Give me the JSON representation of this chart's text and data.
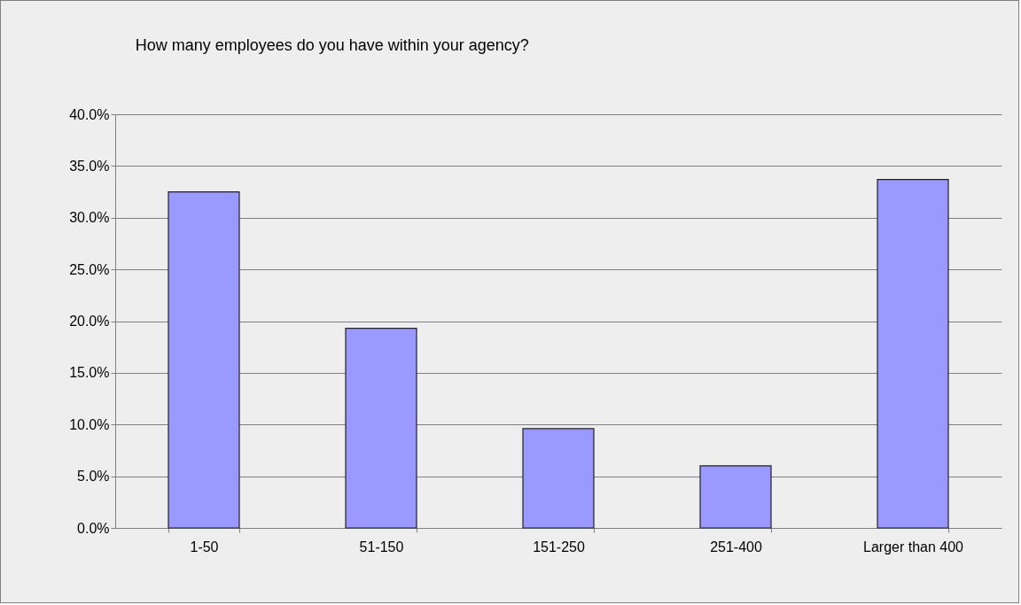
{
  "chart_data": {
    "type": "bar",
    "title": "How many employees do you have within your agency?",
    "categories": [
      "1-50",
      "51-150",
      "151-250",
      "251-400",
      "Larger than 400"
    ],
    "values": [
      32.5,
      19.3,
      9.6,
      6.0,
      33.7
    ],
    "color": "#9999ff",
    "ylim": [
      0,
      40
    ],
    "yticks": [
      {
        "value": 0,
        "label": "0.0%"
      },
      {
        "value": 5,
        "label": "5.0%"
      },
      {
        "value": 10,
        "label": "10.0%"
      },
      {
        "value": 15,
        "label": "15.0%"
      },
      {
        "value": 20,
        "label": "20.0%"
      },
      {
        "value": 25,
        "label": "25.0%"
      },
      {
        "value": 30,
        "label": "30.0%"
      },
      {
        "value": 35,
        "label": "35.0%"
      },
      {
        "value": 40,
        "label": "40.0%"
      }
    ],
    "grid": "y"
  }
}
